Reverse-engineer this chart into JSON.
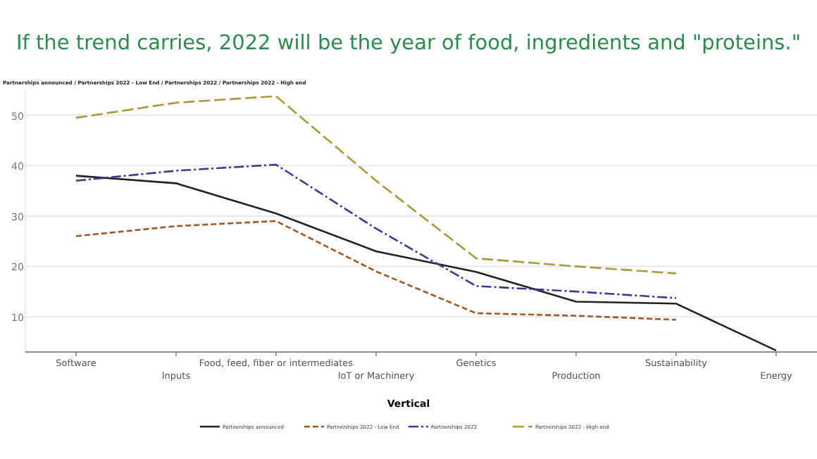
{
  "chart_data": {
    "type": "line",
    "title": "If the trend carries, 2022 will be the year of food, ingredients and \"proteins.\"",
    "ylabel": "Partnerships announced / Partnerships 2022 - Low End / Partnerships 2022 / Partnerships 2022 - High end",
    "xlabel": "Vertical",
    "categories": [
      "Software",
      "Inputs",
      "Food, feed, fiber or intermediates",
      "IoT or Machinery",
      "Genetics",
      "Production",
      "Sustainability",
      "Energy"
    ],
    "series": [
      {
        "name": "Partnerships announced",
        "color": "#222222",
        "line_style": "solid",
        "values": [
          38,
          36.5,
          30.5,
          23,
          18.9,
          13,
          12.6,
          3.3
        ]
      },
      {
        "name": "Partnerships 2022 - Low End",
        "color": "#9c5a2a",
        "line_style": "dashed",
        "values": [
          26,
          28,
          29,
          19,
          10.7,
          10.2,
          9.4,
          null
        ]
      },
      {
        "name": "Partnerships 2022",
        "color": "#3b3b8f",
        "line_style": "dashdot",
        "values": [
          37,
          39,
          40.2,
          27.5,
          16.1,
          15,
          13.7,
          null
        ]
      },
      {
        "name": "Partnerships 2022 - High end",
        "color": "#a89a3a",
        "line_style": "longdash",
        "values": [
          49.5,
          52.5,
          53.8,
          37,
          21.6,
          20,
          18.6,
          null
        ]
      }
    ],
    "ylim": [
      3,
      55
    ],
    "yticks": [
      10,
      20,
      30,
      40,
      50
    ],
    "grid": "y",
    "legend": "bottom",
    "marker": "none"
  }
}
